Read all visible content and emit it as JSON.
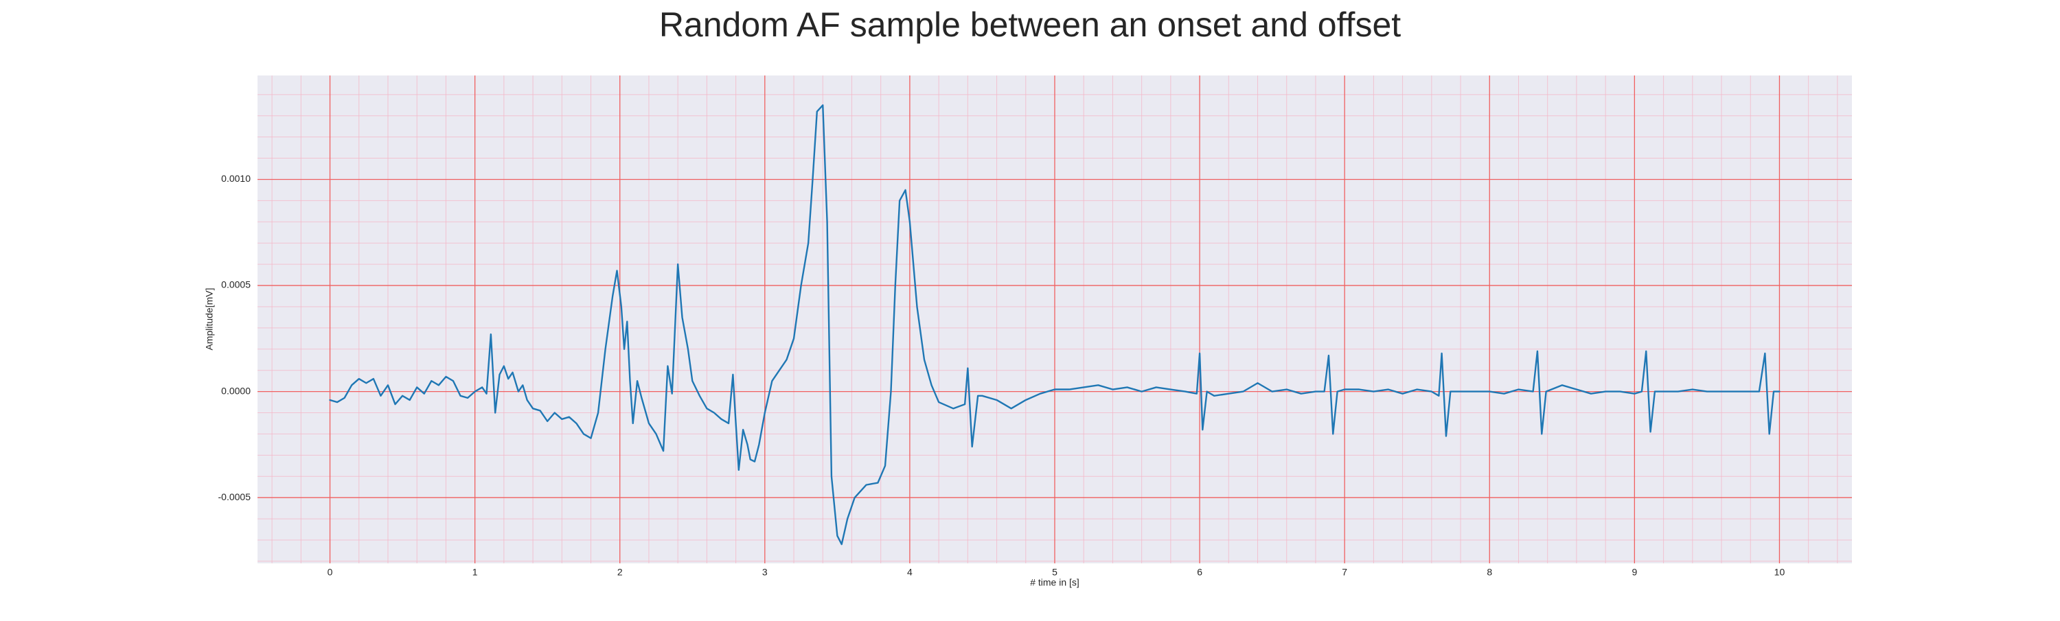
{
  "chart_data": {
    "type": "line",
    "title": "Random AF sample between an onset and offset",
    "xlabel": "# time in [s]",
    "ylabel": "Amplitude[mV]",
    "color": "#1f77b4",
    "grid": true,
    "xlim": [
      -0.5,
      10.5
    ],
    "ylim": [
      -0.00081,
      0.00149
    ],
    "xticks": [
      0,
      1,
      2,
      3,
      4,
      5,
      6,
      7,
      8,
      9,
      10
    ],
    "yticks": [
      {
        "value": -0.0005,
        "label": "-0.0005"
      },
      {
        "value": 0,
        "label": "0.0000"
      },
      {
        "value": 0.0005,
        "label": "0.0005"
      },
      {
        "value": 0.001,
        "label": "0.0010"
      }
    ],
    "xminorticks": [
      -0.4,
      -0.2,
      0.2,
      0.4,
      0.6,
      0.8,
      1.2,
      1.4,
      1.6,
      1.8,
      2.2,
      2.4,
      2.6,
      2.8,
      3.2,
      3.4,
      3.6,
      3.8,
      4.2,
      4.4,
      4.6,
      4.8,
      5.2,
      5.4,
      5.6,
      5.8,
      6.2,
      6.4,
      6.6,
      6.8,
      7.2,
      7.4,
      7.6,
      7.8,
      8.2,
      8.4,
      8.6,
      8.8,
      9.2,
      9.4,
      9.6,
      9.8,
      10.2,
      10.4
    ],
    "yminorticks": [
      -0.0008,
      -0.0007,
      -0.0006,
      -0.0004,
      -0.0003,
      -0.0002,
      -0.0001,
      0.0001,
      0.0002,
      0.0003,
      0.0004,
      0.0006,
      0.0007,
      0.0008,
      0.0009,
      0.0011,
      0.0012,
      0.0013,
      0.0014
    ],
    "x": [
      0,
      0.05,
      0.1,
      0.15,
      0.2,
      0.25,
      0.3,
      0.35,
      0.4,
      0.45,
      0.5,
      0.55,
      0.6,
      0.65,
      0.7,
      0.75,
      0.8,
      0.85,
      0.9,
      0.95,
      1.0,
      1.05,
      1.08,
      1.11,
      1.14,
      1.17,
      1.2,
      1.23,
      1.26,
      1.3,
      1.33,
      1.36,
      1.4,
      1.45,
      1.5,
      1.55,
      1.6,
      1.65,
      1.7,
      1.75,
      1.8,
      1.85,
      1.9,
      1.95,
      1.98,
      2.01,
      2.03,
      2.05,
      2.07,
      2.09,
      2.12,
      2.15,
      2.2,
      2.25,
      2.3,
      2.33,
      2.36,
      2.4,
      2.43,
      2.47,
      2.5,
      2.55,
      2.6,
      2.65,
      2.7,
      2.75,
      2.78,
      2.8,
      2.82,
      2.85,
      2.88,
      2.9,
      2.93,
      2.96,
      3.0,
      3.05,
      3.1,
      3.15,
      3.2,
      3.25,
      3.3,
      3.33,
      3.36,
      3.4,
      3.43,
      3.46,
      3.5,
      3.53,
      3.57,
      3.62,
      3.7,
      3.78,
      3.83,
      3.87,
      3.9,
      3.93,
      3.97,
      4.0,
      4.05,
      4.1,
      4.15,
      4.2,
      4.3,
      4.38,
      4.4,
      4.43,
      4.47,
      4.5,
      4.6,
      4.7,
      4.8,
      4.9,
      5.0,
      5.1,
      5.2,
      5.3,
      5.4,
      5.5,
      5.6,
      5.7,
      5.8,
      5.9,
      5.98,
      6.0,
      6.02,
      6.05,
      6.1,
      6.2,
      6.3,
      6.4,
      6.5,
      6.6,
      6.7,
      6.8,
      6.86,
      6.89,
      6.92,
      6.95,
      7.0,
      7.1,
      7.2,
      7.3,
      7.4,
      7.5,
      7.6,
      7.65,
      7.67,
      7.7,
      7.73,
      7.8,
      7.9,
      8.0,
      8.1,
      8.2,
      8.3,
      8.33,
      8.36,
      8.39,
      8.5,
      8.6,
      8.7,
      8.8,
      8.9,
      9.0,
      9.05,
      9.08,
      9.11,
      9.14,
      9.3,
      9.4,
      9.5,
      9.6,
      9.7,
      9.8,
      9.86,
      9.9,
      9.93,
      9.96,
      10.0
    ],
    "values": [
      -4e-05,
      -5e-05,
      -3e-05,
      3e-05,
      6e-05,
      4e-05,
      6e-05,
      -2e-05,
      3e-05,
      -6e-05,
      -2e-05,
      -4e-05,
      2e-05,
      -1e-05,
      5e-05,
      3e-05,
      7e-05,
      5e-05,
      -2e-05,
      -3e-05,
      0,
      2e-05,
      -1e-05,
      0.00027,
      -0.0001,
      8e-05,
      0.00012,
      6e-05,
      9e-05,
      0,
      3e-05,
      -4e-05,
      -8e-05,
      -9e-05,
      -0.00014,
      -0.0001,
      -0.00013,
      -0.00012,
      -0.00015,
      -0.0002,
      -0.00022,
      -0.0001,
      0.0002,
      0.00045,
      0.00057,
      0.0004,
      0.0002,
      0.00033,
      5e-05,
      -0.00015,
      5e-05,
      -3e-05,
      -0.00015,
      -0.0002,
      -0.00028,
      0.00012,
      -1e-05,
      0.0006,
      0.00035,
      0.0002,
      5e-05,
      -2e-05,
      -8e-05,
      -0.0001,
      -0.00013,
      -0.00015,
      8e-05,
      -0.00015,
      -0.00037,
      -0.00018,
      -0.00025,
      -0.00032,
      -0.00033,
      -0.00025,
      -0.0001,
      5e-05,
      0.0001,
      0.00015,
      0.00025,
      0.0005,
      0.0007,
      0.001,
      0.00132,
      0.00135,
      0.0008,
      -0.0004,
      -0.00068,
      -0.00072,
      -0.0006,
      -0.0005,
      -0.00044,
      -0.00043,
      -0.00035,
      0,
      0.0005,
      0.0009,
      0.00095,
      0.0008,
      0.0004,
      0.00015,
      3e-05,
      -5e-05,
      -8e-05,
      -6e-05,
      0.00011,
      -0.00026,
      -2e-05,
      -2e-05,
      -4e-05,
      -8e-05,
      -4e-05,
      -1e-05,
      1e-05,
      1e-05,
      2e-05,
      3e-05,
      1e-05,
      2e-05,
      0,
      2e-05,
      1e-05,
      0,
      -1e-05,
      0.00018,
      -0.00018,
      0,
      -2e-05,
      -1e-05,
      0,
      4e-05,
      0,
      1e-05,
      -1e-05,
      0,
      0,
      0.00017,
      -0.0002,
      0,
      1e-05,
      1e-05,
      0,
      1e-05,
      -1e-05,
      1e-05,
      0,
      -2e-05,
      0.00018,
      -0.00021,
      0,
      0,
      0,
      0,
      -1e-05,
      1e-05,
      0,
      0.00019,
      -0.0002,
      0,
      3e-05,
      1e-05,
      -1e-05,
      0,
      0,
      -1e-05,
      0,
      0.00019,
      -0.00019,
      0,
      0,
      1e-05,
      0,
      0,
      0,
      0,
      0,
      0.00018,
      -0.0002,
      0,
      0
    ]
  }
}
